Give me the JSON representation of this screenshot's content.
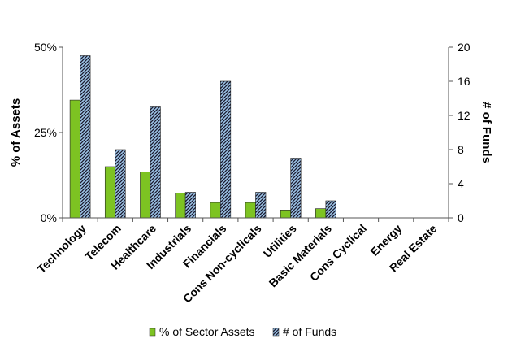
{
  "chart_data": {
    "type": "bar",
    "categories": [
      "Technology",
      "Telecom",
      "Healthcare",
      "Industrials",
      "Financials",
      "Cons Non-cyclicals",
      "Utilities",
      "Basic Materials",
      "Cons Cyclical",
      "Energy",
      "Real Estate"
    ],
    "series": [
      {
        "name": "% of Sector Assets",
        "axis": "left",
        "color": "#7dc322",
        "values": [
          34.5,
          15.0,
          13.5,
          7.3,
          4.5,
          4.5,
          2.3,
          2.7,
          0,
          0,
          0
        ]
      },
      {
        "name": "# of Funds",
        "axis": "right",
        "color": "#9ec5e8",
        "pattern": "dark-diagonal-hatch",
        "values": [
          19,
          8,
          13,
          3,
          16,
          3,
          7,
          2,
          0,
          0,
          0
        ]
      }
    ],
    "ylabel": "% of Assets",
    "y2label": "# of Funds",
    "ylim": [
      0,
      50
    ],
    "y2lim": [
      0,
      20
    ],
    "yticks": [
      "0%",
      "25%",
      "50%"
    ],
    "y2ticks": [
      "0",
      "4",
      "8",
      "12",
      "16",
      "20"
    ],
    "legend_position": "bottom",
    "grid": false
  }
}
